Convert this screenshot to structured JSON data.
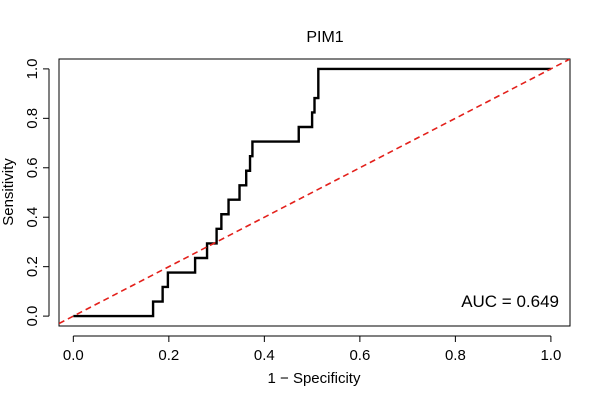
{
  "chart_data": {
    "type": "line",
    "title": "PIM1",
    "xlabel": "1 − Specificity",
    "ylabel": "Sensitivity",
    "xlim": [
      -0.03,
      1.04
    ],
    "ylim": [
      -0.04,
      1.04
    ],
    "xticks": [
      0.0,
      0.2,
      0.4,
      0.6,
      0.8,
      1.0
    ],
    "yticks": [
      0.0,
      0.2,
      0.4,
      0.6,
      0.8,
      1.0
    ],
    "xtick_labels": [
      "0.0",
      "0.2",
      "0.4",
      "0.6",
      "0.8",
      "1.0"
    ],
    "ytick_labels": [
      "0.0",
      "0.2",
      "0.4",
      "0.6",
      "0.8",
      "1.0"
    ],
    "grid": false,
    "annotation": "AUC = 0.649",
    "series": [
      {
        "color": "#000000",
        "style": "solid",
        "x": [
          0.0,
          0.167,
          0.167,
          0.187,
          0.187,
          0.198,
          0.198,
          0.255,
          0.255,
          0.28,
          0.28,
          0.3,
          0.3,
          0.31,
          0.31,
          0.325,
          0.325,
          0.348,
          0.348,
          0.362,
          0.362,
          0.37,
          0.37,
          0.375,
          0.375,
          0.472,
          0.472,
          0.5,
          0.5,
          0.505,
          0.505,
          0.513,
          0.513,
          1.0
        ],
        "y": [
          0.0,
          0.0,
          0.059,
          0.059,
          0.118,
          0.118,
          0.176,
          0.176,
          0.235,
          0.235,
          0.294,
          0.294,
          0.353,
          0.353,
          0.412,
          0.412,
          0.471,
          0.471,
          0.529,
          0.529,
          0.588,
          0.588,
          0.647,
          0.647,
          0.706,
          0.706,
          0.765,
          0.765,
          0.824,
          0.824,
          0.882,
          0.882,
          1.0,
          1.0
        ]
      },
      {
        "color": "#e3201b",
        "style": "dashed",
        "x": [
          -0.03,
          1.04
        ],
        "y": [
          -0.03,
          1.04
        ]
      }
    ]
  }
}
